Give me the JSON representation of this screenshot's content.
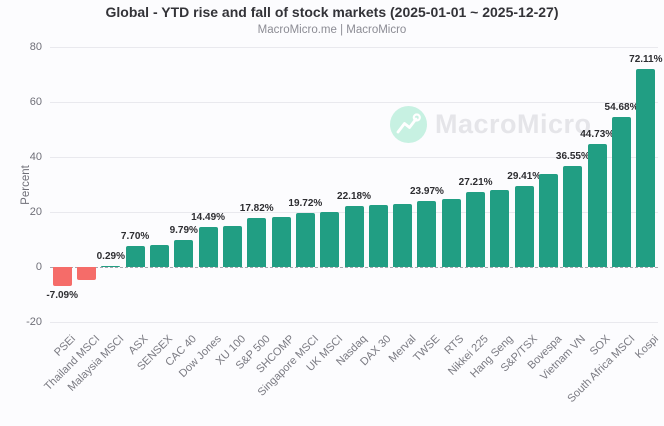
{
  "header": {
    "title": "Global - YTD rise and fall of stock markets (2025-01-01 ~ 2025-12-27)",
    "subtitle": "MacroMicro.me | MacroMicro"
  },
  "watermark": {
    "brand": "MacroMicro"
  },
  "y_axis": {
    "title": "Percent",
    "ticks": [
      80,
      60,
      40,
      20,
      0,
      -20
    ],
    "min": -20,
    "max": 80
  },
  "colors": {
    "positive_bar": "#219E83",
    "negative_bar": "#F56C69",
    "grid": "#E9E9EE",
    "zero_line": "#A7A7AF",
    "axis_text": "#6F6F78",
    "data_label_text": "#2D2D31",
    "title_text": "#333338",
    "subtitle_text": "#8C8C94",
    "watermark_circle": "#C7F1E2",
    "watermark_text": "#E5E5E9",
    "background": "#FCFCFE"
  },
  "chart_data": {
    "type": "bar",
    "title": "Global - YTD rise and fall of stock markets (2025-01-01 ~ 2025-12-27)",
    "xlabel": "",
    "ylabel": "Percent",
    "ylim": [
      -20,
      80
    ],
    "grid": true,
    "legend": false,
    "categories": [
      "PSEi",
      "Thailand MSCI",
      "Malaysia MSCI",
      "ASX",
      "SENSEX",
      "CAC 40",
      "Dow Jones",
      "XU 100",
      "S&P 500",
      "SHCOMP",
      "Singapore MSCI",
      "UK MSCI",
      "Nasdaq",
      "DAX 30",
      "Merval",
      "TWSE",
      "RTS",
      "Nikkei 225",
      "Hang Seng",
      "S&P/TSX",
      "Bovespa",
      "Vietnam VN",
      "SOX",
      "South Africa MSCI",
      "Kospi"
    ],
    "values": [
      -7.09,
      -4.6,
      0.29,
      7.7,
      8.1,
      9.79,
      14.49,
      14.8,
      17.82,
      18.2,
      19.72,
      20.1,
      22.18,
      22.4,
      23.0,
      23.97,
      24.8,
      27.21,
      27.9,
      29.41,
      33.7,
      36.55,
      44.73,
      54.68,
      72.11
    ],
    "data_labels": [
      "-7.09%",
      null,
      "0.29%",
      "7.70%",
      null,
      "9.79%",
      "14.49%",
      null,
      "17.82%",
      null,
      "19.72%",
      null,
      "22.18%",
      null,
      null,
      "23.97%",
      null,
      "27.21%",
      null,
      "29.41%",
      null,
      "36.55%",
      "44.73%",
      "54.68%",
      "72.11%"
    ]
  }
}
